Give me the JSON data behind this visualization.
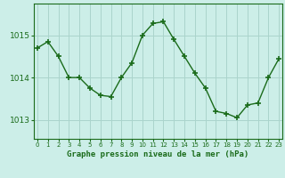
{
  "x": [
    0,
    1,
    2,
    3,
    4,
    5,
    6,
    7,
    8,
    9,
    10,
    11,
    12,
    13,
    14,
    15,
    16,
    17,
    18,
    19,
    20,
    21,
    22,
    23
  ],
  "y": [
    1014.7,
    1014.85,
    1014.5,
    1014.0,
    1014.0,
    1013.75,
    1013.58,
    1013.55,
    1014.0,
    1014.35,
    1015.0,
    1015.28,
    1015.32,
    1014.9,
    1014.5,
    1014.1,
    1013.75,
    1013.2,
    1013.15,
    1013.05,
    1013.35,
    1013.4,
    1014.0,
    1014.45
  ],
  "line_color": "#1a6b1a",
  "marker": "+",
  "marker_size": 4,
  "marker_lw": 1.2,
  "line_width": 1.0,
  "bg_color": "#cceee8",
  "grid_color": "#aad4cc",
  "xlabel": "Graphe pression niveau de la mer (hPa)",
  "xlabel_color": "#1a6b1a",
  "tick_color": "#1a6b1a",
  "yticks": [
    1013,
    1014,
    1015
  ],
  "ylim": [
    1012.55,
    1015.75
  ],
  "xlim": [
    -0.3,
    23.3
  ],
  "xtick_labels": [
    "0",
    "1",
    "2",
    "3",
    "4",
    "5",
    "6",
    "7",
    "8",
    "9",
    "10",
    "11",
    "12",
    "13",
    "14",
    "15",
    "16",
    "17",
    "18",
    "19",
    "20",
    "21",
    "22",
    "23"
  ]
}
